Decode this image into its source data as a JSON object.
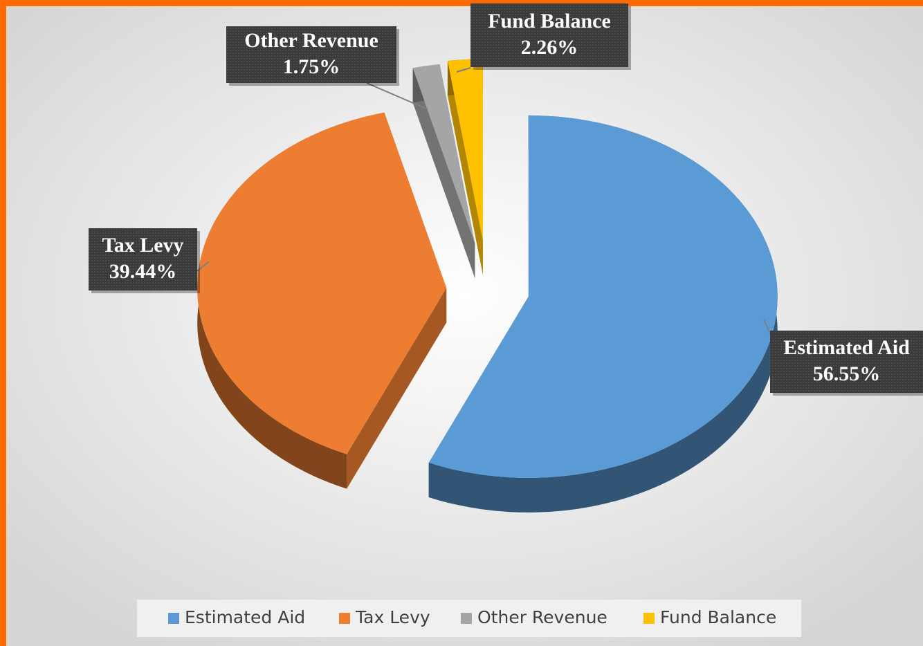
{
  "chart_data": {
    "type": "pie",
    "categories": [
      "Estimated Aid",
      "Tax Levy",
      "Other Revenue",
      "Fund Balance"
    ],
    "values": [
      56.55,
      39.44,
      1.75,
      2.26
    ],
    "value_labels": [
      "56.55%",
      "39.44%",
      "1.75%",
      "2.26%"
    ],
    "colors": [
      "#5b9bd5",
      "#ed7d31",
      "#a5a5a5",
      "#ffc000"
    ],
    "legend": "bottom"
  }
}
